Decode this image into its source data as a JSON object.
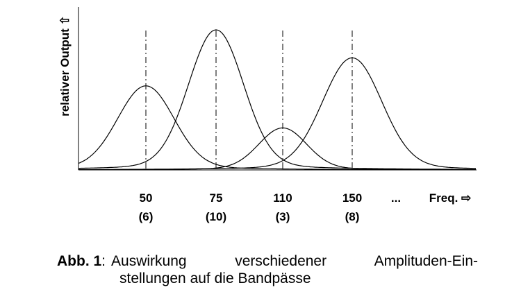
{
  "chart_data": {
    "type": "line",
    "ylabel": "relativer Output ⇧",
    "xlabel": "Freq. ⇨",
    "categories": [
      {
        "freq": "50",
        "amplitude": "(6)"
      },
      {
        "freq": "75",
        "amplitude": "(10)"
      },
      {
        "freq": "110",
        "amplitude": "(3)"
      },
      {
        "freq": "150",
        "amplitude": "(8)"
      }
    ],
    "ellipsis": "...",
    "amplitudes": [
      6,
      10,
      3,
      8
    ],
    "ylim": [
      0,
      10
    ],
    "grid": false,
    "legend": "none"
  },
  "caption": {
    "label": "Abb. 1",
    "colon": ":",
    "line1": "Auswirkung verschiedener Amplituden-Ein-",
    "line2": "stellungen auf die Bandpässe"
  }
}
